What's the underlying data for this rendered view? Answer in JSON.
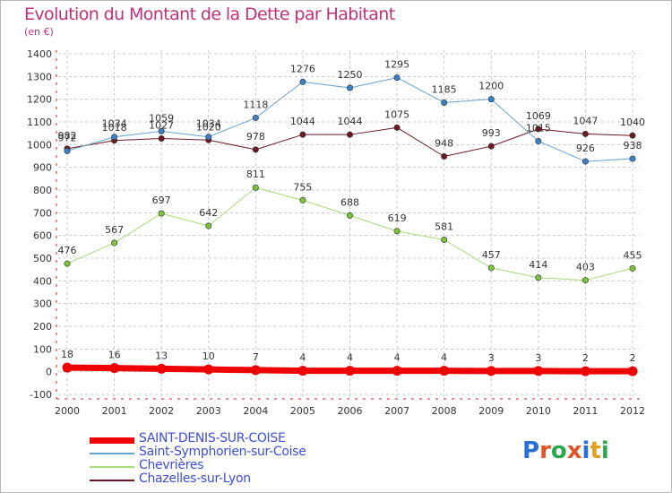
{
  "title": "Evolution du Montant de la Dette par Habitant",
  "unit": "(en €)",
  "logo": {
    "text": "Proxiti",
    "letter_colors": [
      "#2a6fd6",
      "#e0542a",
      "#2aa84a",
      "#e0542a",
      "#2a6fd6",
      "#e0a020",
      "#2aa84a"
    ]
  },
  "chart_data": {
    "type": "line",
    "categories": [
      "2000",
      "2001",
      "2002",
      "2003",
      "2004",
      "2005",
      "2006",
      "2007",
      "2008",
      "2009",
      "2010",
      "2011",
      "2012"
    ],
    "ylim": [
      -100,
      1400
    ],
    "yticks": [
      -100,
      0,
      100,
      200,
      300,
      400,
      500,
      600,
      700,
      800,
      900,
      1000,
      1100,
      1200,
      1300,
      1400
    ],
    "grid": "horizontal dashed",
    "legend_position": "bottom-left",
    "series": [
      {
        "name": "Chazelles-sur-Lyon",
        "color": "#6b1a22",
        "marker": "#6b1a22",
        "width": 1,
        "values": [
          982,
          1018,
          1027,
          1020,
          978,
          1044,
          1044,
          1075,
          948,
          993,
          1069,
          1047,
          1040
        ]
      },
      {
        "name": "Saint-Symphorien-sur-Coise",
        "color": "#6aa2d0",
        "marker": "#3a80c4",
        "width": 1,
        "values": [
          972,
          1034,
          1059,
          1034,
          1118,
          1276,
          1250,
          1295,
          1185,
          1200,
          1015,
          926,
          938
        ]
      },
      {
        "name": "Chevrières",
        "color": "#a6dc7a",
        "marker": "#7cc43a",
        "width": 1,
        "values": [
          476,
          567,
          697,
          642,
          811,
          755,
          688,
          619,
          581,
          457,
          414,
          403,
          455
        ]
      },
      {
        "name": "SAINT-DENIS-SUR-COISE",
        "color": "#ee0000",
        "marker": "#ee0000",
        "width": 7,
        "values": [
          18,
          16,
          13,
          10,
          7,
          4,
          4,
          4,
          4,
          3,
          3,
          2,
          2
        ]
      }
    ]
  }
}
